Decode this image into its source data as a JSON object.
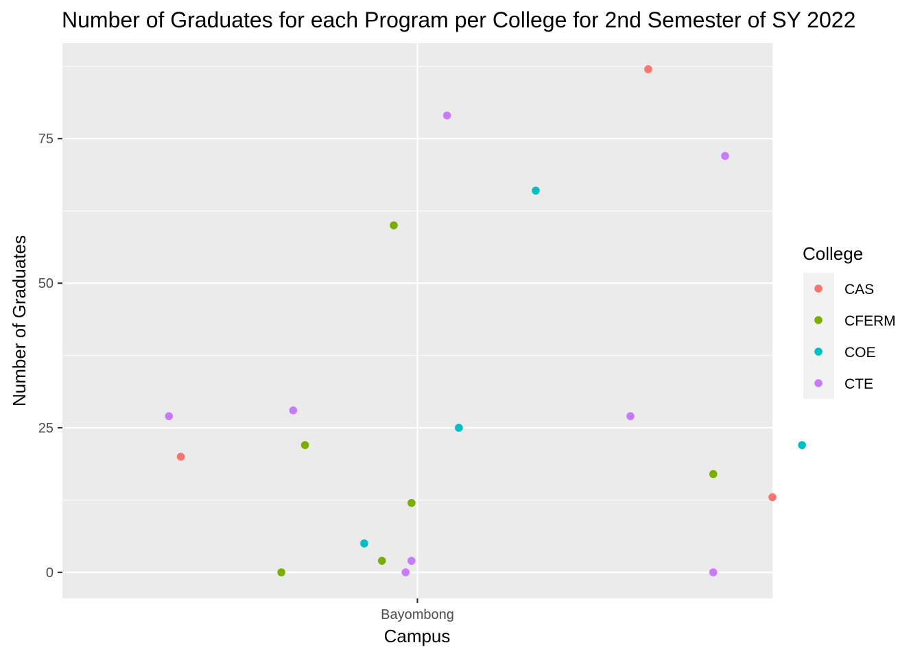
{
  "chart_data": {
    "type": "scatter",
    "title": "Number of Graduates for each Program per College for 2nd Semester of SY 2022",
    "xlabel": "Campus",
    "ylabel": "Number of Graduates",
    "categories": [
      "Bayombong"
    ],
    "ylim": [
      -4.5,
      91.5
    ],
    "yticks": [
      0,
      25,
      50,
      75
    ],
    "grid": true,
    "legend": {
      "title": "College",
      "placement": "right",
      "entries": [
        "CAS",
        "CFERM",
        "COE",
        "CTE"
      ]
    },
    "colors": {
      "CAS": "#F8766D",
      "CFERM": "#7CAE00",
      "COE": "#00BFC4",
      "CTE": "#C77CFF",
      "panel": "#EBEBEB",
      "grid": "#FFFFFF"
    },
    "series": [
      {
        "name": "CAS",
        "points": [
          {
            "x": 0.6,
            "y": 20
          },
          {
            "x": 1.39,
            "y": 87
          },
          {
            "x": 1.6,
            "y": 13
          }
        ]
      },
      {
        "name": "CFERM",
        "points": [
          {
            "x": 0.81,
            "y": 22
          },
          {
            "x": 0.77,
            "y": 0
          },
          {
            "x": 0.96,
            "y": 60
          },
          {
            "x": 0.94,
            "y": 2
          },
          {
            "x": 0.99,
            "y": 12
          },
          {
            "x": 1.5,
            "y": 17
          }
        ]
      },
      {
        "name": "COE",
        "points": [
          {
            "x": 0.91,
            "y": 5
          },
          {
            "x": 1.07,
            "y": 25
          },
          {
            "x": 1.2,
            "y": 66
          },
          {
            "x": 1.65,
            "y": 22
          }
        ]
      },
      {
        "name": "CTE",
        "points": [
          {
            "x": 0.58,
            "y": 27
          },
          {
            "x": 0.79,
            "y": 28
          },
          {
            "x": 1.05,
            "y": 79
          },
          {
            "x": 0.98,
            "y": 0
          },
          {
            "x": 0.99,
            "y": 2
          },
          {
            "x": 1.36,
            "y": 27
          },
          {
            "x": 1.52,
            "y": 72
          },
          {
            "x": 1.5,
            "y": 0
          }
        ]
      }
    ]
  }
}
